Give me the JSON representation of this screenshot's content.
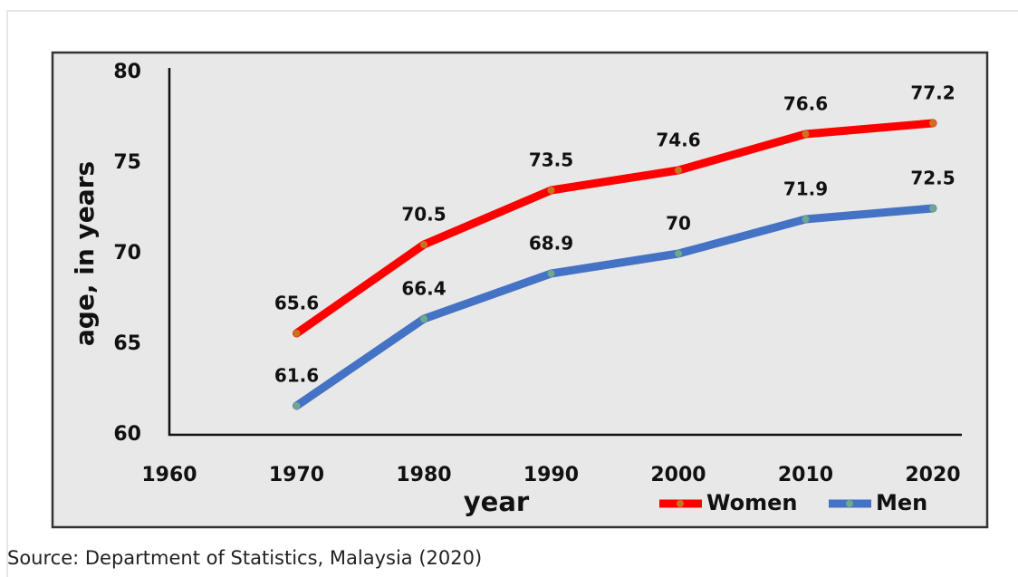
{
  "chart_data": {
    "type": "line",
    "x": [
      1970,
      1980,
      1990,
      2000,
      2010,
      2020
    ],
    "series": [
      {
        "name": "Women",
        "color": "#ff0000",
        "marker_color": "#c8741e",
        "values": [
          65.6,
          70.5,
          73.5,
          74.6,
          76.6,
          77.2
        ]
      },
      {
        "name": "Men",
        "color": "#4472c4",
        "marker_color": "#6fa88a",
        "values": [
          61.6,
          66.4,
          68.9,
          70,
          71.9,
          72.5
        ]
      }
    ],
    "xlim": [
      1960,
      2020
    ],
    "xticks": [
      1960,
      1970,
      1980,
      1990,
      2000,
      2010,
      2020
    ],
    "ylim": [
      60,
      80
    ],
    "yticks": [
      60,
      65,
      70,
      75,
      80
    ],
    "xlabel": "year",
    "ylabel": "age, in years",
    "legend": "bottom-right",
    "grid": false
  },
  "source": "Source: Department of Statistics, Malaysia (2020)"
}
